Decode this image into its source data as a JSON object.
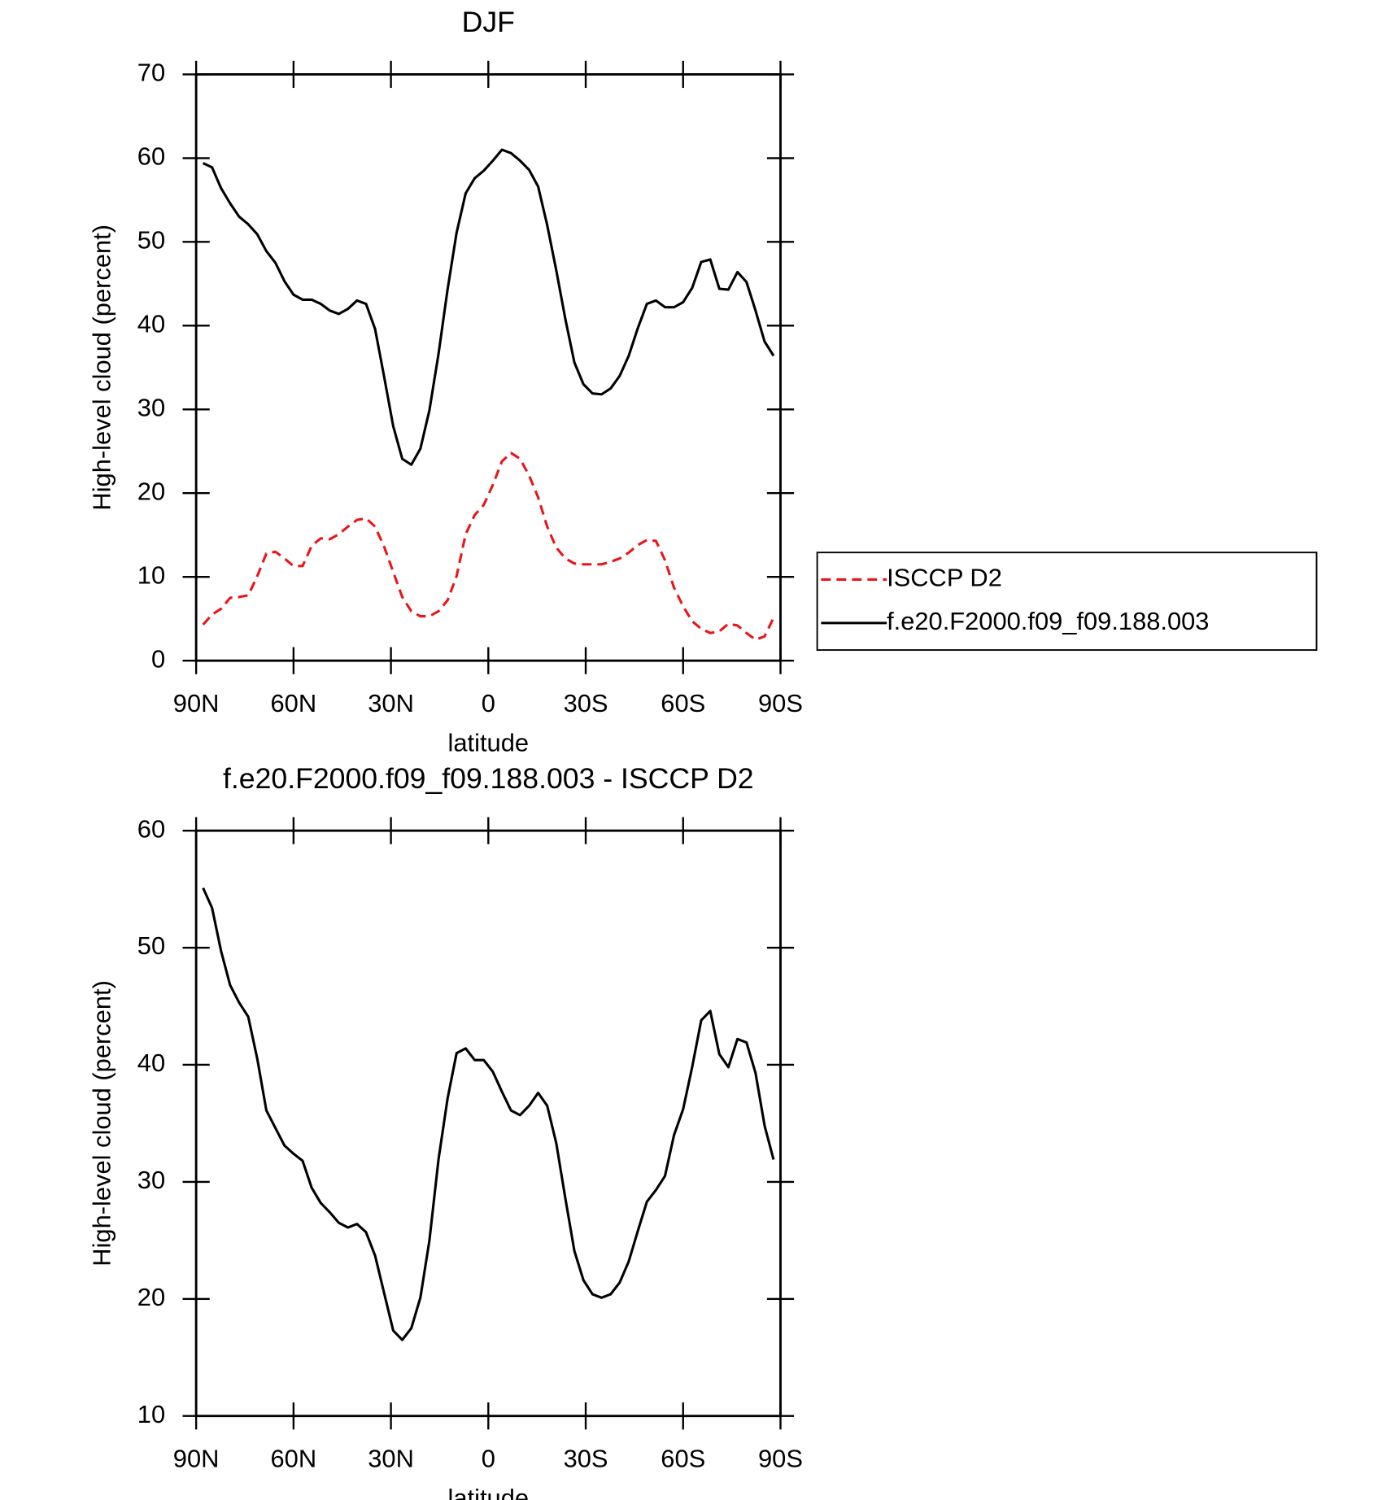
{
  "chart_data": [
    {
      "type": "line",
      "title": "DJF",
      "x_label": "latitude",
      "y_label": "High-level cloud (percent)",
      "x": [
        87.86,
        85.1,
        82.31,
        79.53,
        76.74,
        73.95,
        71.16,
        68.37,
        65.58,
        62.79,
        60.0,
        57.21,
        54.42,
        51.63,
        48.84,
        46.05,
        43.25,
        40.46,
        37.67,
        34.88,
        32.09,
        29.3,
        26.51,
        23.72,
        20.93,
        18.14,
        15.35,
        12.56,
        9.77,
        6.98,
        4.19,
        1.4,
        -1.4,
        -4.19,
        -6.98,
        -9.77,
        -12.56,
        -15.35,
        -18.14,
        -20.93,
        -23.72,
        -26.51,
        -29.3,
        -32.09,
        -34.88,
        -37.67,
        -40.46,
        -43.25,
        -46.05,
        -48.84,
        -51.63,
        -54.42,
        -57.21,
        -60.0,
        -62.79,
        -65.58,
        -68.37,
        -71.16,
        -73.95,
        -76.74,
        -79.53,
        -82.31,
        -85.1,
        -87.86
      ],
      "series": [
        {
          "name": "ISCCP D2",
          "color": "#e8161b",
          "dashed": true,
          "values": [
            4.3,
            5.5,
            6.2,
            7.5,
            7.6,
            7.8,
            10.1,
            12.8,
            13,
            12.2,
            11.3,
            11.3,
            13.7,
            14.6,
            14.5,
            15.1,
            16,
            16.8,
            17,
            16,
            13.6,
            10.6,
            7.6,
            5.9,
            5.3,
            5.3,
            5.9,
            7.2,
            10.1,
            15.1,
            17.4,
            18.6,
            21,
            23.8,
            24.8,
            24.1,
            22.1,
            19.5,
            16,
            13.5,
            12.2,
            11.6,
            11.5,
            11.5,
            11.5,
            11.8,
            12.2,
            12.9,
            13.8,
            14.4,
            14.3,
            12,
            8.7,
            6.5,
            4.7,
            3.8,
            3.3,
            3.5,
            4.4,
            4.2,
            3.3,
            2.5,
            2.9,
            5.1
          ]
        },
        {
          "name": "f.e20.F2000.f09_f09.188.003",
          "color": "#000000",
          "dashed": false,
          "values": [
            59.4,
            58.9,
            56.4,
            54.6,
            53,
            52.1,
            50.9,
            48.9,
            47.5,
            45.3,
            43.7,
            43.1,
            43.1,
            42.6,
            41.8,
            41.4,
            42,
            43,
            42.6,
            39.6,
            33.9,
            28,
            24.1,
            23.4,
            25.3,
            29.9,
            36.6,
            44.3,
            51.1,
            55.8,
            57.6,
            58.5,
            59.7,
            61,
            60.6,
            59.7,
            58.6,
            56.6,
            52,
            46.6,
            40.8,
            35.6,
            33,
            31.9,
            31.8,
            32.5,
            34,
            36.4,
            39.7,
            42.6,
            43,
            42.2,
            42.2,
            42.8,
            44.5,
            47.6,
            47.9,
            44.4,
            44.3,
            46.4,
            45.2,
            41.8,
            38.1,
            36.4
          ]
        }
      ],
      "xlim": [
        90,
        -90
      ],
      "xticks": [
        {
          "value": 90,
          "label": "90N"
        },
        {
          "value": 60,
          "label": "60N"
        },
        {
          "value": 30,
          "label": "30N"
        },
        0,
        {
          "value": -30,
          "label": "30S"
        },
        {
          "value": -60,
          "label": "60S"
        },
        {
          "value": -90,
          "label": "90S"
        }
      ],
      "ylim": [
        0,
        70
      ],
      "yticks": [
        0,
        10,
        20,
        30,
        40,
        50,
        60,
        70
      ],
      "legend": "right"
    },
    {
      "type": "line",
      "title": "f.e20.F2000.f09_f09.188.003 - ISCCP D2",
      "x_label": "latitude",
      "y_label": "High-level cloud (percent)",
      "x": [
        87.86,
        85.1,
        82.31,
        79.53,
        76.74,
        73.95,
        71.16,
        68.37,
        65.58,
        62.79,
        60.0,
        57.21,
        54.42,
        51.63,
        48.84,
        46.05,
        43.25,
        40.46,
        37.67,
        34.88,
        32.09,
        29.3,
        26.51,
        23.72,
        20.93,
        18.14,
        15.35,
        12.56,
        9.77,
        6.98,
        4.19,
        1.4,
        -1.4,
        -4.19,
        -6.98,
        -9.77,
        -12.56,
        -15.35,
        -18.14,
        -20.93,
        -23.72,
        -26.51,
        -29.3,
        -32.09,
        -34.88,
        -37.67,
        -40.46,
        -43.25,
        -46.05,
        -48.84,
        -51.63,
        -54.42,
        -57.21,
        -60.0,
        -62.79,
        -65.58,
        -68.37,
        -71.16,
        -73.95,
        -76.74,
        -79.53,
        -82.31,
        -85.1,
        -87.86
      ],
      "series": [
        {
          "color": "#000000",
          "dashed": false,
          "values": [
            55.1,
            53.4,
            49.7,
            46.8,
            45.3,
            44.1,
            40.5,
            36.1,
            34.6,
            33.1,
            32.4,
            31.8,
            29.5,
            28.2,
            27.4,
            26.5,
            26.1,
            26.4,
            25.7,
            23.7,
            20.5,
            17.3,
            16.5,
            17.5,
            20.1,
            25,
            31.9,
            37.1,
            41,
            41.4,
            40.4,
            40.4,
            39.4,
            37.7,
            36.1,
            35.7,
            36.5,
            37.6,
            36.5,
            33.3,
            28.6,
            24.1,
            21.6,
            20.4,
            20.1,
            20.4,
            21.4,
            23.2,
            25.8,
            28.3,
            29.3,
            30.5,
            34,
            36.2,
            39.8,
            43.8,
            44.6,
            40.9,
            39.8,
            42.2,
            41.9,
            39.3,
            34.8,
            31.9
          ]
        }
      ],
      "xlim": [
        90,
        -90
      ],
      "xticks": [
        {
          "value": 90,
          "label": "90N"
        },
        {
          "value": 60,
          "label": "60N"
        },
        {
          "value": 30,
          "label": "30N"
        },
        0,
        {
          "value": -30,
          "label": "30S"
        },
        {
          "value": -60,
          "label": "60S"
        },
        {
          "value": -90,
          "label": "90S"
        }
      ],
      "ylim": [
        10,
        60
      ],
      "yticks": [
        10,
        20,
        30,
        40,
        50,
        60
      ]
    }
  ]
}
